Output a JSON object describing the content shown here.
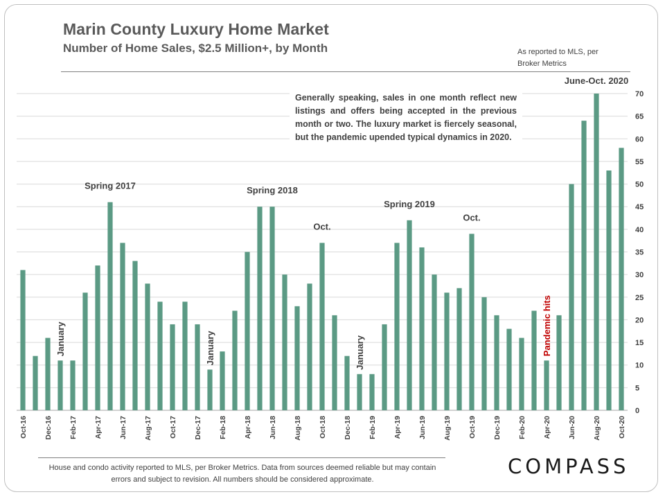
{
  "header": {
    "title": "Marin County Luxury Home Market",
    "subtitle": "Number of Home Sales, $2.5 Million+, by Month",
    "source_note": "As reported to MLS, per Broker Metrics"
  },
  "annotation": "Generally speaking, sales in one month reflect new listings and offers being accepted in the previous month or two. The luxury market is fiercely seasonal, but the pandemic upended typical dynamics in 2020.",
  "footer": {
    "note": "House and condo activity reported to MLS, per Broker Metrics. Data from sources deemed reliable but may contain errors and subject to revision. All numbers should be considered approximate.",
    "logo": "COMPASS"
  },
  "colors": {
    "bar": "#5b9a84",
    "grid": "#d9d9d9",
    "text": "#404040",
    "highlight": "#c00000"
  },
  "chart_data": {
    "type": "bar",
    "title": "Marin County Luxury Home Market",
    "subtitle": "Number of Home Sales, $2.5 Million+, by Month",
    "xlabel": "",
    "ylabel": "",
    "ylim": [
      0,
      70
    ],
    "yticks": [
      0,
      5,
      10,
      15,
      20,
      25,
      30,
      35,
      40,
      45,
      50,
      55,
      60,
      65,
      70
    ],
    "y_axis_side": "right",
    "grid": true,
    "categories": [
      "Oct-16",
      "Nov-16",
      "Dec-16",
      "Jan-17",
      "Feb-17",
      "Mar-17",
      "Apr-17",
      "May-17",
      "Jun-17",
      "Jul-17",
      "Aug-17",
      "Sep-17",
      "Oct-17",
      "Nov-17",
      "Dec-17",
      "Jan-18",
      "Feb-18",
      "Mar-18",
      "Apr-18",
      "May-18",
      "Jun-18",
      "Jul-18",
      "Aug-18",
      "Sep-18",
      "Oct-18",
      "Nov-18",
      "Dec-18",
      "Jan-19",
      "Feb-19",
      "Mar-19",
      "Apr-19",
      "May-19",
      "Jun-19",
      "Jul-19",
      "Aug-19",
      "Sep-19",
      "Oct-19",
      "Nov-19",
      "Dec-19",
      "Jan-20",
      "Feb-20",
      "Mar-20",
      "Apr-20",
      "May-20",
      "Jun-20",
      "Jul-20",
      "Aug-20",
      "Sep-20",
      "Oct-20"
    ],
    "shown_tick_labels": [
      "Oct-16",
      "Dec-16",
      "Feb-17",
      "Apr-17",
      "Jun-17",
      "Aug-17",
      "Oct-17",
      "Dec-17",
      "Feb-18",
      "Apr-18",
      "Jun-18",
      "Aug-18",
      "Oct-18",
      "Dec-18",
      "Feb-19",
      "Apr-19",
      "Jun-19",
      "Aug-19",
      "Oct-19",
      "Dec-19",
      "Feb-20",
      "Apr-20",
      "Jun-20",
      "Aug-20",
      "Oct-20"
    ],
    "values": [
      31,
      12,
      16,
      11,
      11,
      26,
      32,
      46,
      37,
      33,
      28,
      24,
      19,
      24,
      19,
      9,
      13,
      22,
      35,
      45,
      45,
      30,
      23,
      28,
      37,
      21,
      12,
      8,
      8,
      19,
      37,
      42,
      36,
      30,
      26,
      27,
      39,
      25,
      21,
      18,
      16,
      22,
      11,
      21,
      50,
      64,
      70,
      53,
      58
    ],
    "annotations": [
      {
        "text": "Spring 2017",
        "category": "May-17",
        "orientation": "horizontal"
      },
      {
        "text": "Spring 2018",
        "category": "Jun-18",
        "orientation": "horizontal"
      },
      {
        "text": "Oct.",
        "category": "Oct-18",
        "orientation": "horizontal"
      },
      {
        "text": "Spring 2019",
        "category": "May-19",
        "orientation": "horizontal"
      },
      {
        "text": "Oct.",
        "category": "Oct-19",
        "orientation": "horizontal"
      },
      {
        "text": "June-Oct. 2020",
        "category": "Aug-20",
        "orientation": "horizontal"
      },
      {
        "text": "January",
        "category": "Jan-17",
        "orientation": "vertical"
      },
      {
        "text": "January",
        "category": "Jan-18",
        "orientation": "vertical"
      },
      {
        "text": "January",
        "category": "Jan-19",
        "orientation": "vertical"
      },
      {
        "text": "Pandemic hits",
        "category": "Apr-20",
        "orientation": "vertical",
        "highlight": true
      }
    ]
  }
}
